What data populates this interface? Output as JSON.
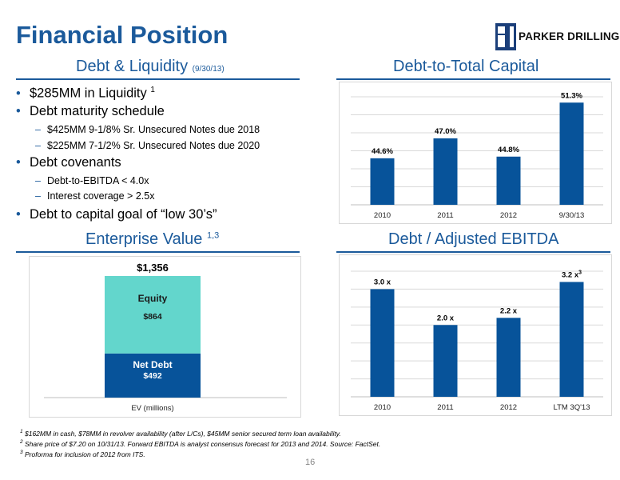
{
  "page": {
    "title": "Financial Position",
    "logo_text": "Parker Drilling",
    "page_number": "16"
  },
  "debt_liquidity": {
    "heading": "Debt & Liquidity",
    "heading_sub": "(9/30/13)",
    "bullets": [
      {
        "text": "$285MM in Liquidity",
        "sup": "1"
      },
      {
        "text": "Debt maturity schedule"
      },
      {
        "text": "Debt covenants"
      },
      {
        "text": "Debt to capital goal of “low 30’s”"
      }
    ],
    "maturity_items": [
      "$425MM 9-1/8% Sr. Unsecured Notes due 2018",
      "$225MM 7-1/2% Sr. Unsecured Notes due 2020"
    ],
    "covenant_items": [
      "Debt-to-EBITDA < 4.0x",
      "Interest coverage > 2.5x"
    ]
  },
  "enterprise_value": {
    "heading": "Enterprise Value",
    "heading_sup": "1,3"
  },
  "debt_to_capital": {
    "heading": "Debt-to-Total Capital"
  },
  "debt_ebitda": {
    "heading": "Debt / Adjusted EBITDA"
  },
  "chart_data": [
    {
      "type": "bar",
      "title": "Debt-to-Total Capital",
      "categories": [
        "2010",
        "2011",
        "2012",
        "9/30/13"
      ],
      "values": [
        44.6,
        47.0,
        44.8,
        51.3
      ],
      "labels": [
        "44.6%",
        "47.0%",
        "44.8%",
        "51.3%"
      ],
      "ylim": [
        39.0,
        52.0
      ],
      "grid": true,
      "color": "#07539a"
    },
    {
      "type": "bar",
      "title": "Debt / Adjusted EBITDA",
      "categories": [
        "2010",
        "2011",
        "2012",
        "LTM 3Q'13"
      ],
      "values": [
        3.0,
        2.0,
        2.2,
        3.2
      ],
      "labels": [
        "3.0 x",
        "2.0 x",
        "2.2 x",
        "3.2 x"
      ],
      "label_sups": [
        "",
        "",
        "",
        "3"
      ],
      "ylim": [
        0,
        3.5
      ],
      "grid": true,
      "color": "#07539a"
    },
    {
      "type": "bar",
      "stacked": true,
      "title": "Enterprise Value",
      "categories": [
        "EV (millions)"
      ],
      "total_label": "$1,356",
      "total": 1356,
      "segments": [
        {
          "name": "Net Debt",
          "value": 492,
          "label": "$492",
          "color": "#07539a"
        },
        {
          "name": "Equity",
          "value": 864,
          "label": "$864",
          "color": "#63d6cc"
        }
      ],
      "grid": false
    }
  ],
  "footnotes": [
    {
      "sup": "1",
      "text": "$162MM in cash, $78MM in revolver availability (after L/Cs), $45MM senior secured term loan availability."
    },
    {
      "sup": "2",
      "text": "Share price of $7.20 on 10/31/13. Forward EBITDA is analyst consensus forecast for 2013 and 2014. Source: FactSet."
    },
    {
      "sup": "3",
      "text": "Proforma for inclusion of 2012 from ITS."
    }
  ],
  "colors": {
    "brand_blue": "#1b5a9b",
    "bar_blue": "#07539a",
    "equity_teal": "#63d6cc"
  }
}
